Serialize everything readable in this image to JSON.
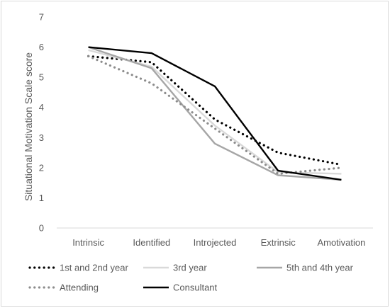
{
  "chart_data": {
    "type": "line",
    "title": "",
    "xlabel": "",
    "ylabel": "Situational Motivation Scale score",
    "ylim": [
      0,
      7
    ],
    "yticks": [
      0,
      1,
      2,
      3,
      4,
      5,
      6,
      7
    ],
    "grid": false,
    "legend_position": "bottom",
    "categories": [
      "Intrinsic",
      "Identified",
      "Introjected",
      "Extrinsic",
      "Amotivation"
    ],
    "series": [
      {
        "name": "1st and 2nd year",
        "values": [
          5.7,
          5.5,
          3.6,
          2.5,
          2.1
        ],
        "color": "#000000",
        "style": "dotted"
      },
      {
        "name": "3rd year",
        "values": [
          5.9,
          5.35,
          3.4,
          1.85,
          1.8
        ],
        "color": "#d9d9d9",
        "style": "solid"
      },
      {
        "name": "5th and 4th year",
        "values": [
          6.0,
          5.3,
          2.8,
          1.75,
          1.6
        ],
        "color": "#a6a6a6",
        "style": "solid"
      },
      {
        "name": "Attending",
        "values": [
          5.7,
          4.8,
          3.3,
          1.8,
          2.0
        ],
        "color": "#8c8c8c",
        "style": "dotted"
      },
      {
        "name": "Consultant",
        "values": [
          6.0,
          5.8,
          4.7,
          1.9,
          1.6
        ],
        "color": "#000000",
        "style": "solid"
      }
    ]
  }
}
